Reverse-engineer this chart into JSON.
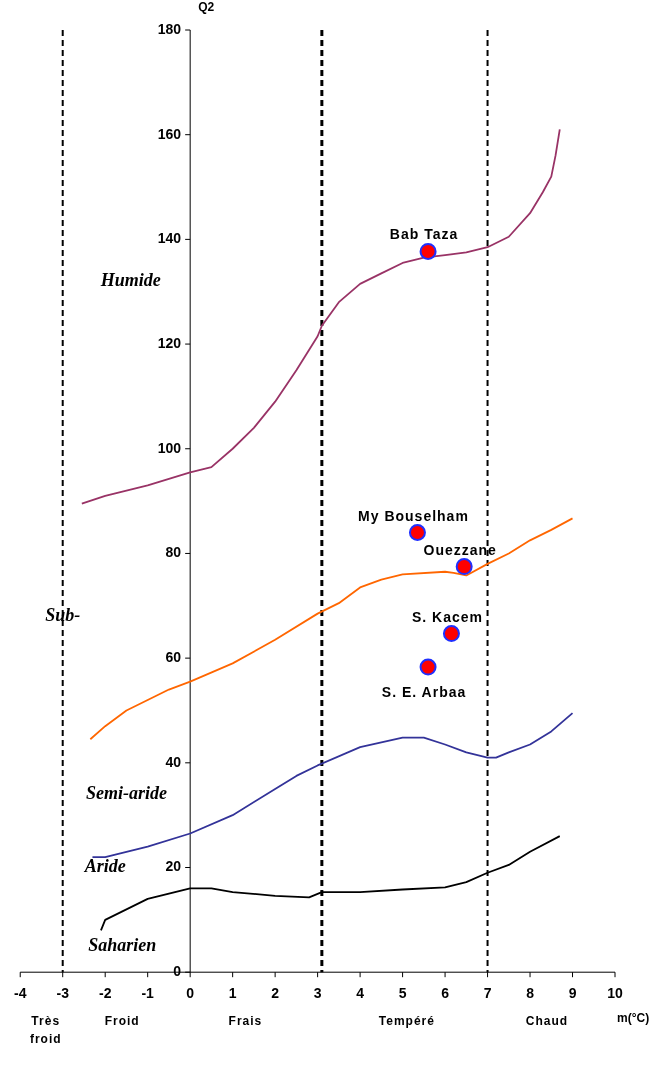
{
  "chart_data": {
    "type": "line",
    "ylabel": "Q2",
    "xlabel": "m(°C)",
    "xlim": [
      -4,
      10
    ],
    "xticks": [
      -4,
      -3,
      -2,
      -1,
      0,
      1,
      2,
      3,
      4,
      5,
      6,
      7,
      8,
      9,
      10
    ],
    "ylim": [
      0,
      180
    ],
    "yticks": [
      0,
      20,
      40,
      60,
      80,
      100,
      120,
      140,
      160,
      180
    ],
    "grid": false,
    "legend": false,
    "line_style": "solid",
    "ref_lines": [
      {
        "axis": "x",
        "value": -3,
        "line_style": "dashed",
        "color": "#000000"
      },
      {
        "axis": "x",
        "value": 3.1,
        "line_style": "dashed",
        "color": "#000000"
      },
      {
        "axis": "x",
        "value": 7,
        "line_style": "dashed",
        "color": "#000000"
      }
    ],
    "annotations": [
      {
        "text": "Bab Taza",
        "x": 5.6,
        "y": 137.7
      },
      {
        "text": "My Bouselham",
        "x": 5.35,
        "y": 84
      },
      {
        "text": "Ouezzane",
        "x": 6.45,
        "y": 77.5
      },
      {
        "text": "S. Kacem",
        "x": 6.15,
        "y": 64.7
      },
      {
        "text": "S. E. Arbaa",
        "x": 5.6,
        "y": 58.3
      },
      "Humide",
      "Sub-",
      "Semi-aride",
      "Aride",
      "Saharien",
      "Très froid",
      "Froid",
      "Frais",
      "Tempéré",
      "Chaud"
    ],
    "series": [
      {
        "color": "#993366",
        "x": [
          -2.55,
          -2,
          -1,
          0,
          0.5,
          1,
          1.5,
          2,
          2.5,
          3,
          3.1,
          3.5,
          4,
          4.5,
          5,
          5.5,
          6,
          6.5,
          7,
          7.5,
          8,
          8.3,
          8.5,
          8.6,
          8.7
        ],
        "values": [
          89.5,
          91,
          93,
          95.5,
          96.5,
          100,
          104,
          109,
          115,
          121.5,
          123.5,
          128,
          131.5,
          133.5,
          135.5,
          136.5,
          137,
          137.5,
          138.5,
          140.5,
          145,
          149,
          152,
          156,
          161
        ]
      },
      {
        "color": "#ff6600",
        "x": [
          -2.35,
          -2,
          -1.5,
          -1,
          -0.5,
          0,
          1,
          2,
          3,
          3.5,
          4,
          4.5,
          5,
          6,
          6.2,
          6.5,
          7,
          7.5,
          8,
          8.5,
          9
        ],
        "values": [
          44.5,
          47,
          50,
          52,
          54,
          55.5,
          59,
          63.5,
          68.5,
          70.5,
          73.5,
          75,
          76,
          76.5,
          76.3,
          75.8,
          78,
          80,
          82.5,
          84.5,
          86.7
        ]
      },
      {
        "color": "#333399",
        "x": [
          -2.3,
          -2,
          -1,
          0,
          1,
          2,
          2.5,
          3,
          4,
          5,
          5.5,
          6,
          6.5,
          7,
          7.2,
          7.5,
          8,
          8.5,
          9
        ],
        "values": [
          22,
          22,
          24,
          26.5,
          30,
          35,
          37.5,
          39.5,
          43,
          44.8,
          44.8,
          43.5,
          42,
          41,
          41,
          42,
          43.5,
          46,
          49.5
        ]
      },
      {
        "color": "#000000",
        "x": [
          -2.1,
          -2,
          -1.5,
          -1,
          -0.5,
          0,
          0.5,
          1,
          2,
          2.8,
          3.1,
          4,
          5,
          6,
          6.5,
          7,
          7.5,
          8,
          8.7
        ],
        "values": [
          8,
          10,
          12,
          14,
          15,
          16,
          16,
          15.3,
          14.6,
          14.3,
          15.3,
          15.3,
          15.8,
          16.2,
          17.2,
          19,
          20.5,
          23,
          26
        ]
      },
      {
        "type": "scatter",
        "color": "#ff0000",
        "x": [
          5.6,
          5.35,
          6.45,
          6.15,
          5.6
        ],
        "values": [
          137.7,
          84,
          77.5,
          64.7,
          58.3
        ]
      }
    ]
  }
}
